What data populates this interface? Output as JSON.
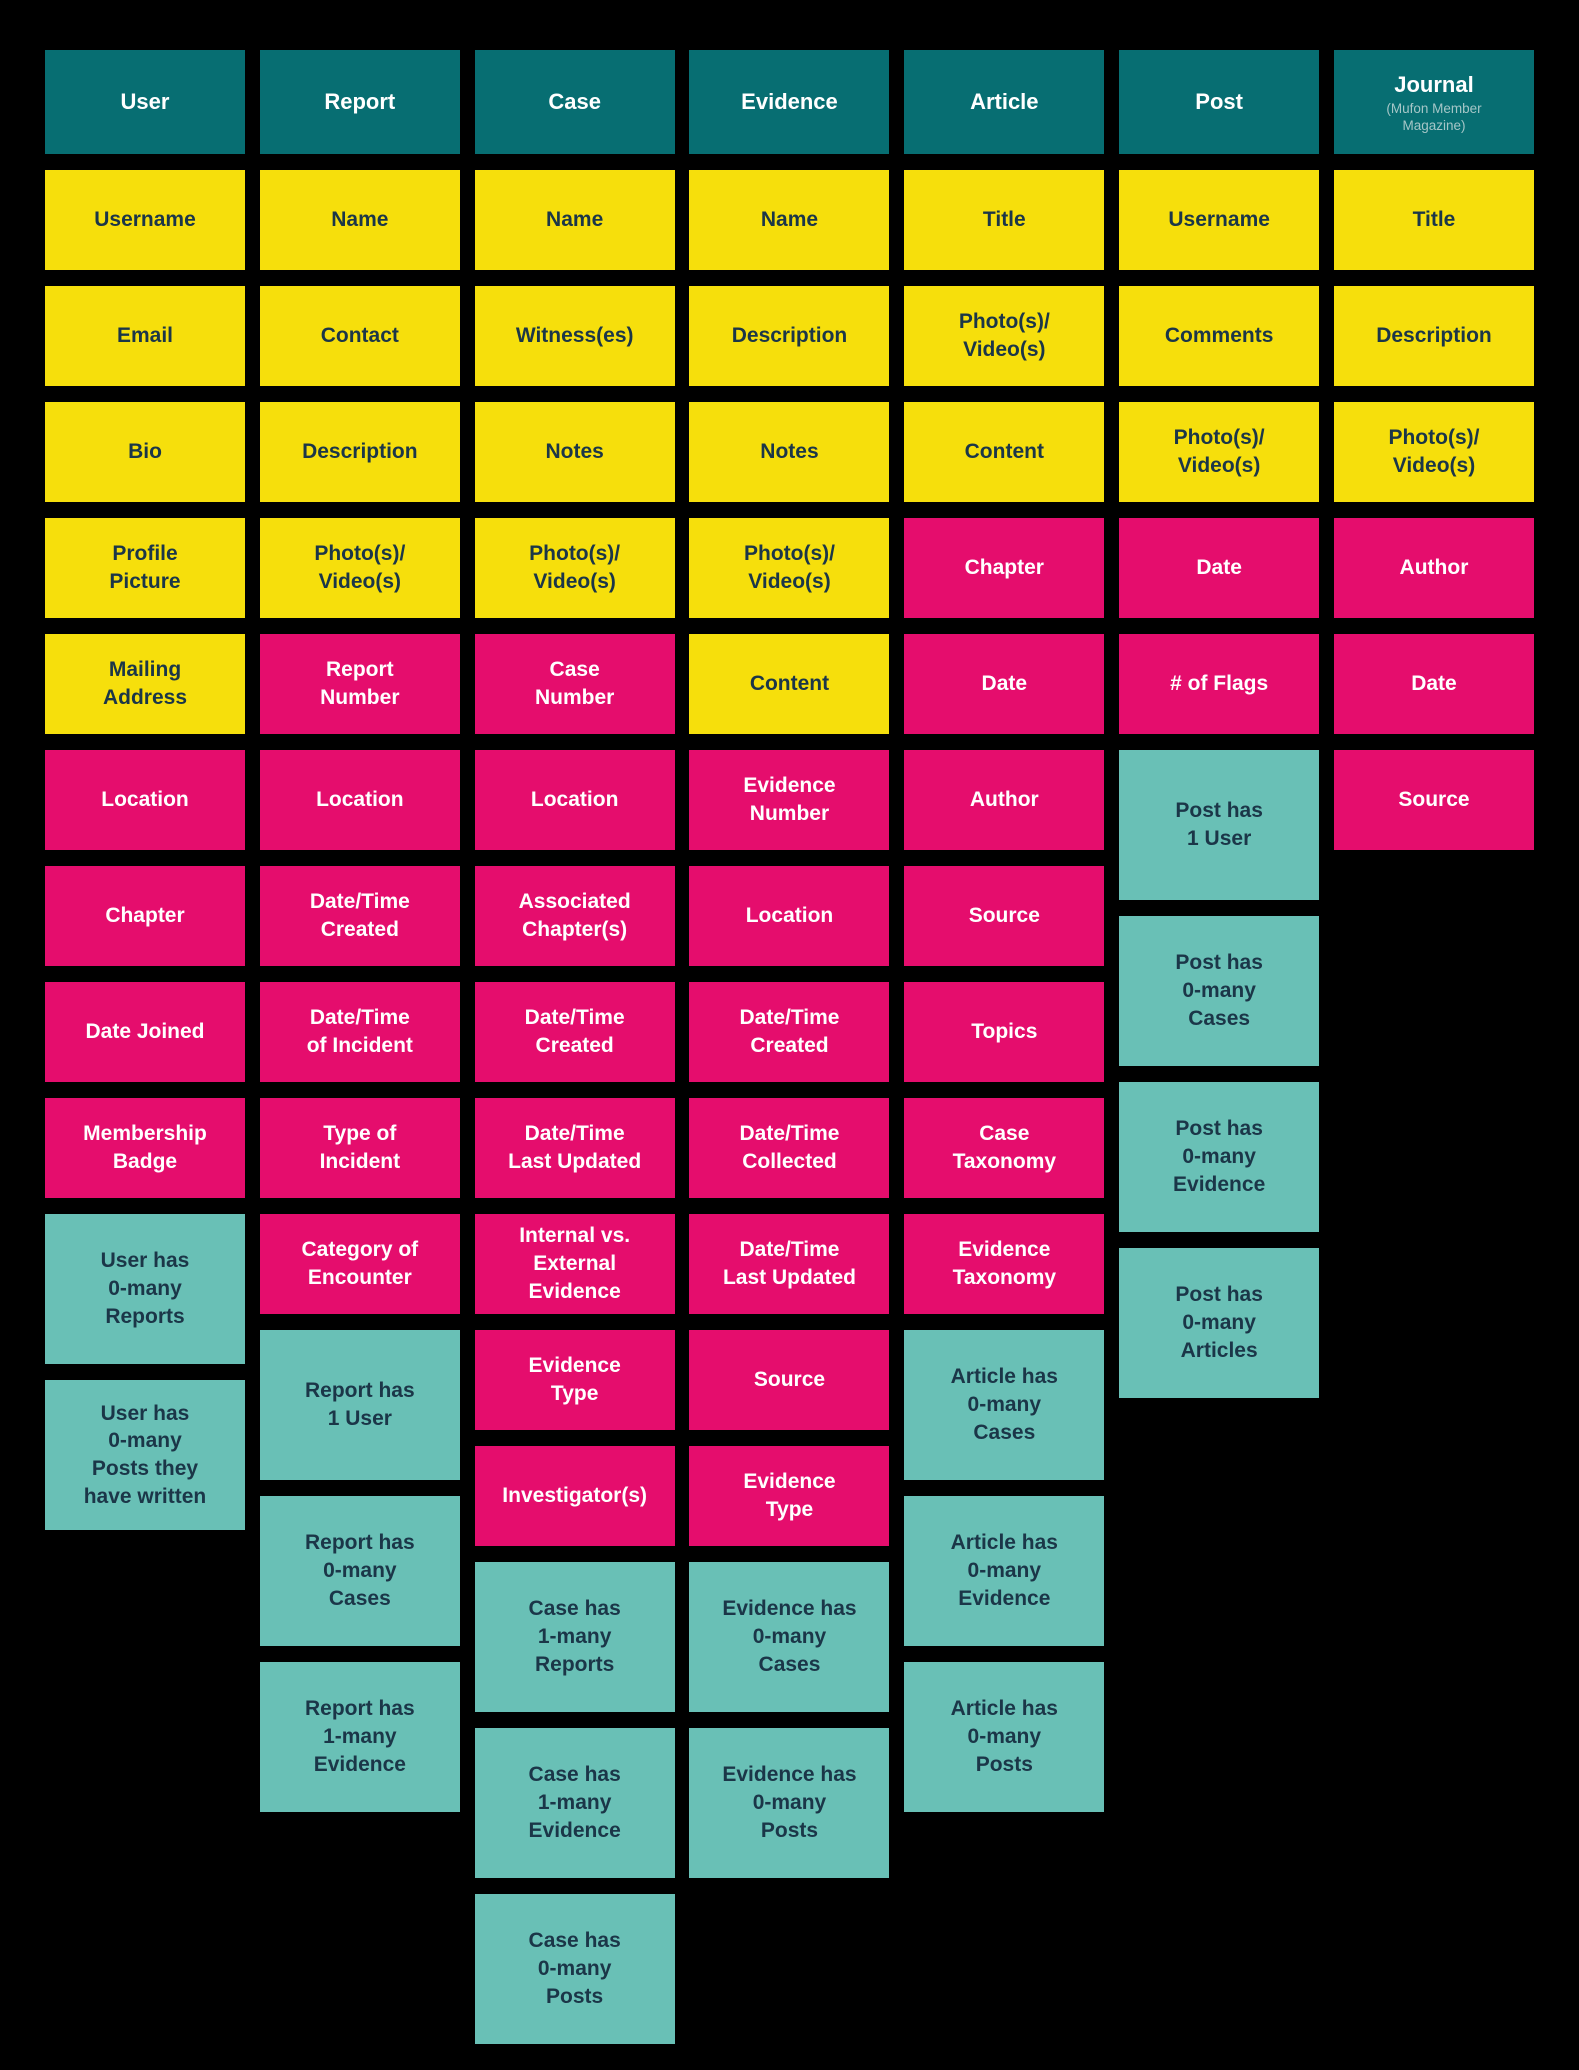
{
  "colors": {
    "background": "#000000",
    "entity_header": "#076e72",
    "content_attribute": "#f6df0c",
    "metadata_attribute": "#e50d6d",
    "relationship": "#69c0b6",
    "text_dark": "#1b3648",
    "text_light": "#ffffff",
    "header_subtitle": "#a5c6c7"
  },
  "columns": [
    {
      "title": "User",
      "subtitle": "",
      "cards": [
        {
          "label": "Username",
          "type": "content"
        },
        {
          "label": "Email",
          "type": "content"
        },
        {
          "label": "Bio",
          "type": "content"
        },
        {
          "label": "Profile\nPicture",
          "type": "content"
        },
        {
          "label": "Mailing\nAddress",
          "type": "content"
        },
        {
          "label": "Location",
          "type": "metadata"
        },
        {
          "label": "Chapter",
          "type": "metadata"
        },
        {
          "label": "Date Joined",
          "type": "metadata"
        },
        {
          "label": "Membership\nBadge",
          "type": "metadata"
        },
        {
          "label": "User has\n0-many\nReports",
          "type": "relationship"
        },
        {
          "label": "User has\n0-many\nPosts they\nhave written",
          "type": "relationship"
        }
      ]
    },
    {
      "title": "Report",
      "subtitle": "",
      "cards": [
        {
          "label": "Name",
          "type": "content"
        },
        {
          "label": "Contact",
          "type": "content"
        },
        {
          "label": "Description",
          "type": "content"
        },
        {
          "label": "Photo(s)/\nVideo(s)",
          "type": "content"
        },
        {
          "label": "Report\nNumber",
          "type": "metadata"
        },
        {
          "label": "Location",
          "type": "metadata"
        },
        {
          "label": "Date/Time\nCreated",
          "type": "metadata"
        },
        {
          "label": "Date/Time\nof Incident",
          "type": "metadata"
        },
        {
          "label": "Type of\nIncident",
          "type": "metadata"
        },
        {
          "label": "Category of\nEncounter",
          "type": "metadata"
        },
        {
          "label": "Report has\n1 User",
          "type": "relationship"
        },
        {
          "label": "Report has\n0-many\nCases",
          "type": "relationship"
        },
        {
          "label": "Report has\n1-many\nEvidence",
          "type": "relationship"
        }
      ]
    },
    {
      "title": "Case",
      "subtitle": "",
      "cards": [
        {
          "label": "Name",
          "type": "content"
        },
        {
          "label": "Witness(es)",
          "type": "content"
        },
        {
          "label": "Notes",
          "type": "content"
        },
        {
          "label": "Photo(s)/\nVideo(s)",
          "type": "content"
        },
        {
          "label": "Case\nNumber",
          "type": "metadata"
        },
        {
          "label": "Location",
          "type": "metadata"
        },
        {
          "label": "Associated\nChapter(s)",
          "type": "metadata"
        },
        {
          "label": "Date/Time\nCreated",
          "type": "metadata"
        },
        {
          "label": "Date/Time\nLast Updated",
          "type": "metadata"
        },
        {
          "label": "Internal vs.\nExternal\nEvidence",
          "type": "metadata"
        },
        {
          "label": "Evidence\nType",
          "type": "metadata"
        },
        {
          "label": "Investigator(s)",
          "type": "metadata"
        },
        {
          "label": "Case has\n1-many\nReports",
          "type": "relationship"
        },
        {
          "label": "Case has\n1-many\nEvidence",
          "type": "relationship"
        },
        {
          "label": "Case has\n0-many\nPosts",
          "type": "relationship"
        }
      ]
    },
    {
      "title": "Evidence",
      "subtitle": "",
      "cards": [
        {
          "label": "Name",
          "type": "content"
        },
        {
          "label": "Description",
          "type": "content"
        },
        {
          "label": "Notes",
          "type": "content"
        },
        {
          "label": "Photo(s)/\nVideo(s)",
          "type": "content"
        },
        {
          "label": "Content",
          "type": "content"
        },
        {
          "label": "Evidence\nNumber",
          "type": "metadata"
        },
        {
          "label": "Location",
          "type": "metadata"
        },
        {
          "label": "Date/Time\nCreated",
          "type": "metadata"
        },
        {
          "label": "Date/Time\nCollected",
          "type": "metadata"
        },
        {
          "label": "Date/Time\nLast Updated",
          "type": "metadata"
        },
        {
          "label": "Source",
          "type": "metadata"
        },
        {
          "label": "Evidence\nType",
          "type": "metadata"
        },
        {
          "label": "Evidence has\n0-many\nCases",
          "type": "relationship"
        },
        {
          "label": "Evidence has\n0-many\nPosts",
          "type": "relationship"
        }
      ]
    },
    {
      "title": "Article",
      "subtitle": "",
      "cards": [
        {
          "label": "Title",
          "type": "content"
        },
        {
          "label": "Photo(s)/\nVideo(s)",
          "type": "content"
        },
        {
          "label": "Content",
          "type": "content"
        },
        {
          "label": "Chapter",
          "type": "metadata"
        },
        {
          "label": "Date",
          "type": "metadata"
        },
        {
          "label": "Author",
          "type": "metadata"
        },
        {
          "label": "Source",
          "type": "metadata"
        },
        {
          "label": "Topics",
          "type": "metadata"
        },
        {
          "label": "Case\nTaxonomy",
          "type": "metadata"
        },
        {
          "label": "Evidence\nTaxonomy",
          "type": "metadata"
        },
        {
          "label": "Article has\n0-many\nCases",
          "type": "relationship"
        },
        {
          "label": "Article has\n0-many\nEvidence",
          "type": "relationship"
        },
        {
          "label": "Article has\n0-many\nPosts",
          "type": "relationship"
        }
      ]
    },
    {
      "title": "Post",
      "subtitle": "",
      "cards": [
        {
          "label": "Username",
          "type": "content"
        },
        {
          "label": "Comments",
          "type": "content"
        },
        {
          "label": "Photo(s)/\nVideo(s)",
          "type": "content"
        },
        {
          "label": "Date",
          "type": "metadata"
        },
        {
          "label": "# of Flags",
          "type": "metadata"
        },
        {
          "label": "Post has\n1 User",
          "type": "relationship"
        },
        {
          "label": "Post has\n0-many\nCases",
          "type": "relationship"
        },
        {
          "label": "Post has\n0-many\nEvidence",
          "type": "relationship"
        },
        {
          "label": "Post has\n0-many\nArticles",
          "type": "relationship"
        }
      ]
    },
    {
      "title": "Journal",
      "subtitle": "(Mufon Member\nMagazine)",
      "cards": [
        {
          "label": "Title",
          "type": "content"
        },
        {
          "label": "Description",
          "type": "content"
        },
        {
          "label": "Photo(s)/\nVideo(s)",
          "type": "content"
        },
        {
          "label": "Author",
          "type": "metadata"
        },
        {
          "label": "Date",
          "type": "metadata"
        },
        {
          "label": "Source",
          "type": "metadata"
        }
      ]
    }
  ]
}
